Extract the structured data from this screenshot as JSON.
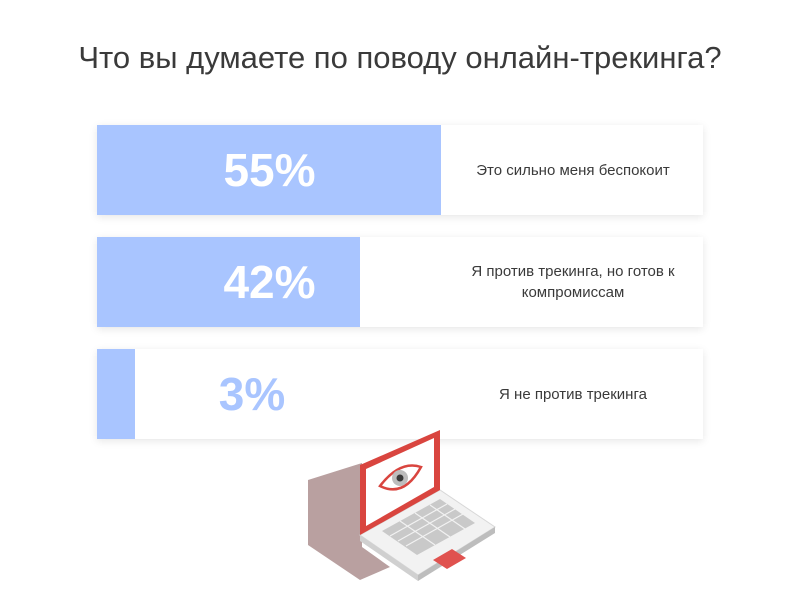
{
  "title": "Что вы думаете по поводу онлайн-трекинга?",
  "colors": {
    "bar": "#a9c5ff",
    "pct_on_bar": "#ffffff",
    "pct_off_bar": "#a9c5ff"
  },
  "chart_data": {
    "type": "bar",
    "orientation": "horizontal",
    "title": "Что вы думаете по поводу онлайн-трекинга?",
    "categories": [
      "Это сильно меня беспокоит",
      "Я против трекинга, но готов к компромиссам",
      "Я не против трекинга"
    ],
    "values": [
      55,
      42,
      3
    ],
    "value_labels": [
      "55%",
      "42%",
      "3%"
    ],
    "unit": "%",
    "xlim": [
      0,
      100
    ],
    "grid": false
  },
  "illustration": {
    "icon": "laptop-eye-icon"
  }
}
